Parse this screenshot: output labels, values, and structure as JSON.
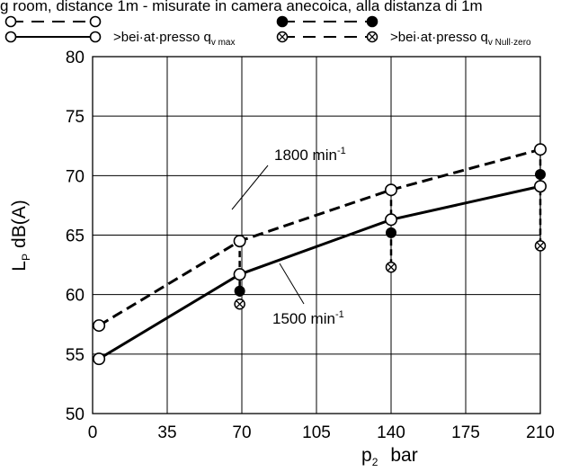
{
  "chart_data": {
    "type": "line",
    "header_text": "g room, distance 1m - misurate in camera anecoica, alla distanza di 1m",
    "xlabel": {
      "main": "p",
      "sub": "2",
      "unit": "bar"
    },
    "ylabel": {
      "main": "L",
      "sub": "P",
      "unit": "dB(A)"
    },
    "xlim": [
      0,
      210
    ],
    "ylim": [
      50,
      80
    ],
    "xticks": [
      0,
      35,
      70,
      105,
      140,
      175,
      210
    ],
    "xtick_labels": [
      "0",
      "35",
      "70",
      "105",
      "140",
      "175",
      "210"
    ],
    "yticks": [
      50,
      55,
      60,
      65,
      70,
      75,
      80
    ],
    "ytick_labels": [
      "50",
      "55",
      "60",
      "65",
      "70",
      "75",
      "80"
    ],
    "grid": true,
    "legend": [
      {
        "text": ">bei·at·presso q",
        "sub": "v max",
        "markers": "open-circle-pair"
      },
      {
        "text": ">bei·at·presso q",
        "sub": "v Null·zero",
        "markers": "crossed-circle-pair"
      }
    ],
    "series": [
      {
        "name": "1800 min",
        "label_sup": "-1",
        "style": "dashed",
        "x": [
          3,
          69,
          140,
          210
        ],
        "y": [
          57.4,
          64.5,
          68.8,
          72.2
        ]
      },
      {
        "name": "1500 min",
        "label_sup": "-1",
        "style": "solid",
        "x": [
          3,
          69,
          140,
          210
        ],
        "y": [
          54.6,
          61.7,
          66.3,
          69.1
        ]
      }
    ],
    "drops": [
      {
        "x": 69,
        "from": 64.5,
        "filled": 60.3,
        "crossed": 59.2
      },
      {
        "x": 140,
        "from": 68.8,
        "filled": 65.2,
        "crossed": 62.3
      },
      {
        "x": 210,
        "from": 72.2,
        "filled": 70.1,
        "crossed": 64.1
      }
    ]
  }
}
